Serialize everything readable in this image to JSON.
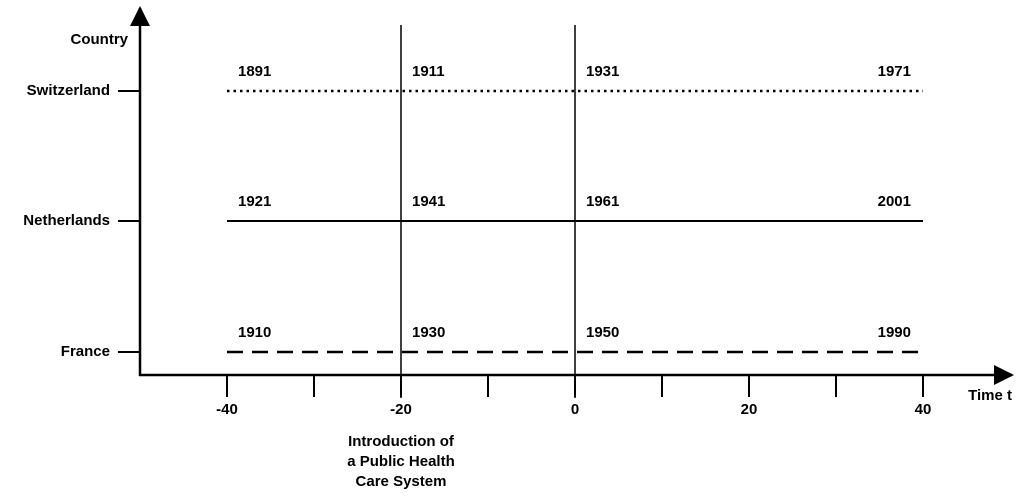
{
  "chart_data": {
    "type": "timeline",
    "y_label": "Country",
    "x_label": "Time t",
    "xlim": [
      -50,
      50
    ],
    "xticks": [
      -40,
      -20,
      0,
      20,
      40
    ],
    "minor_xticks": [
      -30,
      -10,
      10,
      30
    ],
    "categories": [
      "Switzerland",
      "Netherlands",
      "France"
    ],
    "series": [
      {
        "name": "Switzerland",
        "style": "dotted",
        "color": "#000000",
        "x": [
          -40,
          -20,
          0,
          40
        ],
        "years": [
          1891,
          1911,
          1931,
          1971
        ]
      },
      {
        "name": "Netherlands",
        "style": "solid",
        "color": "#000000",
        "x": [
          -40,
          -20,
          0,
          40
        ],
        "years": [
          1921,
          1941,
          1961,
          2001
        ]
      },
      {
        "name": "France",
        "style": "dashed",
        "color": "#000000",
        "x": [
          -40,
          -20,
          0,
          40
        ],
        "years": [
          1910,
          1930,
          1950,
          1990
        ]
      }
    ],
    "markers": [
      {
        "x": -20,
        "lines": [
          "Introduction of",
          "a Public Health",
          "Care System"
        ]
      },
      {
        "x": 0
      }
    ]
  }
}
